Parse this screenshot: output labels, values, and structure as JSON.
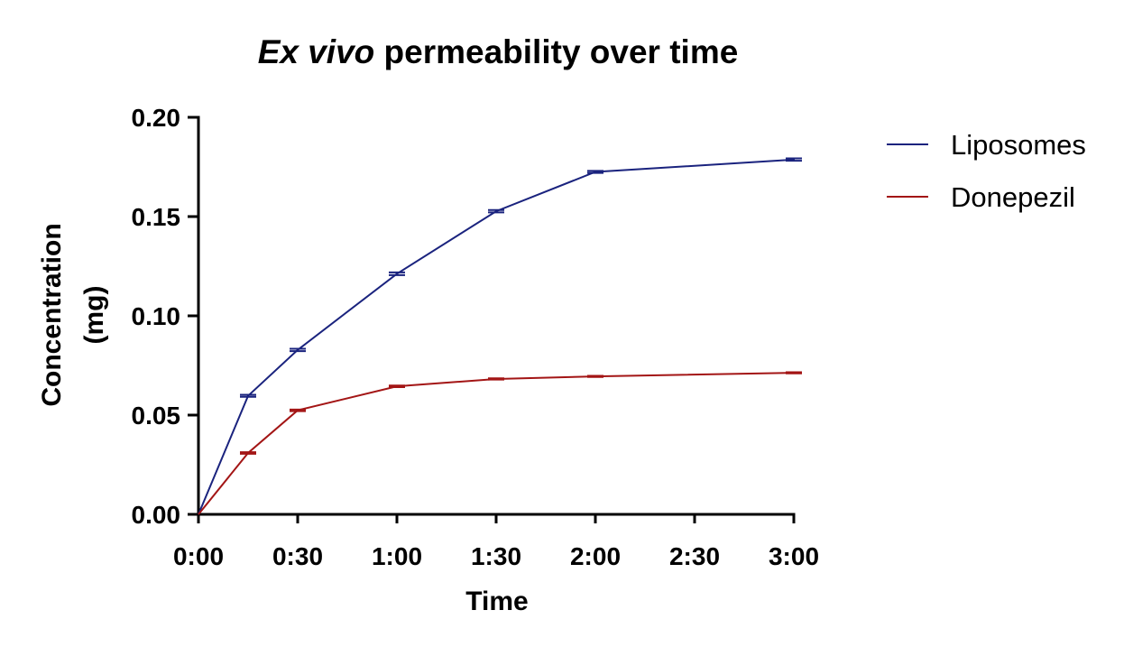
{
  "chart_data": {
    "type": "line",
    "title_italic": "Ex vivo",
    "title_rest": " permeability over time",
    "xlabel": "Time",
    "ylabel_line1": "Concentration",
    "ylabel_line2": "(mg)",
    "x_unit": "minutes",
    "xlim": [
      0,
      180
    ],
    "ylim": [
      0,
      0.2
    ],
    "x_ticks": [
      0,
      30,
      60,
      90,
      120,
      150,
      180
    ],
    "x_tick_labels": [
      "0:00",
      "0:30",
      "1:00",
      "1:30",
      "2:00",
      "2:30",
      "3:00"
    ],
    "y_ticks": [
      0,
      0.05,
      0.1,
      0.15,
      0.2
    ],
    "y_tick_labels": [
      "0.00",
      "0.05",
      "0.10",
      "0.15",
      "0.20"
    ],
    "legend_position": "right",
    "grid": false,
    "series": [
      {
        "name": "Liposomes",
        "color": "#1a237e",
        "x": [
          0,
          15,
          30,
          60,
          90,
          120,
          180
        ],
        "y": [
          0,
          0.0597,
          0.0828,
          0.1212,
          0.1527,
          0.1725,
          0.1787
        ],
        "err": [
          0,
          0.0005,
          0.0006,
          0.0007,
          0.0006,
          0.0005,
          0.0006
        ]
      },
      {
        "name": "Donepezil",
        "color": "#a31515",
        "x": [
          0,
          15,
          30,
          60,
          90,
          120,
          180
        ],
        "y": [
          0,
          0.0309,
          0.0524,
          0.0645,
          0.0682,
          0.0695,
          0.0713
        ],
        "err": [
          0,
          0.0004,
          0.0004,
          0.0004,
          0.0003,
          0.0003,
          0.0003
        ]
      }
    ]
  }
}
